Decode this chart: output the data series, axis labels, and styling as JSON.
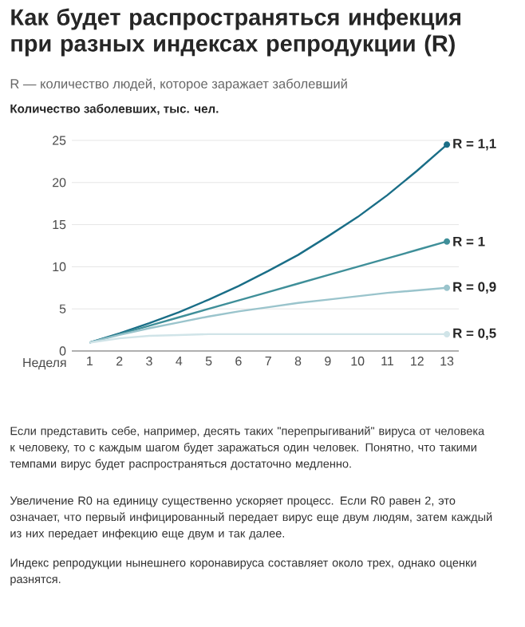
{
  "chart_data": {
    "type": "line",
    "title": "Как будет распространяться инфекция при разных индексах репродукции (R)",
    "subtitle": "R — количество людей, которое заражает заболевший",
    "ylabel": "Количество заболевших, тыс. чел.",
    "xlabel": "Неделя",
    "x": [
      1,
      2,
      3,
      4,
      5,
      6,
      7,
      8,
      9,
      10,
      11,
      12,
      13
    ],
    "series": [
      {
        "name": "R = 1,1",
        "color": "#1a6e87",
        "values": [
          1,
          2.1,
          3.3,
          4.6,
          6.1,
          7.7,
          9.5,
          11.4,
          13.6,
          15.9,
          18.5,
          21.4,
          24.5
        ]
      },
      {
        "name": "R = 1",
        "color": "#3f8f99",
        "values": [
          1,
          2,
          3,
          4,
          5,
          6,
          7,
          8,
          9,
          10,
          11,
          12,
          13
        ]
      },
      {
        "name": "R = 0,9",
        "color": "#9ac4cc",
        "values": [
          1,
          1.9,
          2.7,
          3.4,
          4.1,
          4.7,
          5.2,
          5.7,
          6.1,
          6.5,
          6.9,
          7.2,
          7.5
        ]
      },
      {
        "name": "R = 0,5",
        "color": "#d0e4e8",
        "values": [
          1,
          1.5,
          1.8,
          1.9,
          2,
          2,
          2,
          2,
          2,
          2,
          2,
          2,
          2
        ]
      }
    ],
    "xlim": [
      0.4,
      13.4
    ],
    "ylim": [
      0,
      25
    ],
    "xticks": [
      1,
      2,
      3,
      4,
      5,
      6,
      7,
      8,
      9,
      10,
      11,
      12,
      13
    ],
    "yticks": [
      0,
      5,
      10,
      15,
      20,
      25
    ],
    "grid": "y",
    "annotations": [
      "Если представить себе, например, десять таких \"перепрыгиваний\" вируса от человека к человеку, то с каждым шагом будет заражаться один человек. Понятно, что такими темпами вирус будет распространяться достаточно медленно.",
      "Увеличение R0 на единицу существенно ускоряет процесс. Если R0 равен 2, это означает, что первый инфицированный передает вирус еще двум людям, затем каждый из них передает инфекцию еще двум и так далее.",
      "Индекс репродукции нынешнего коронавируса составляет около трех, однако оценки разнятся."
    ]
  }
}
